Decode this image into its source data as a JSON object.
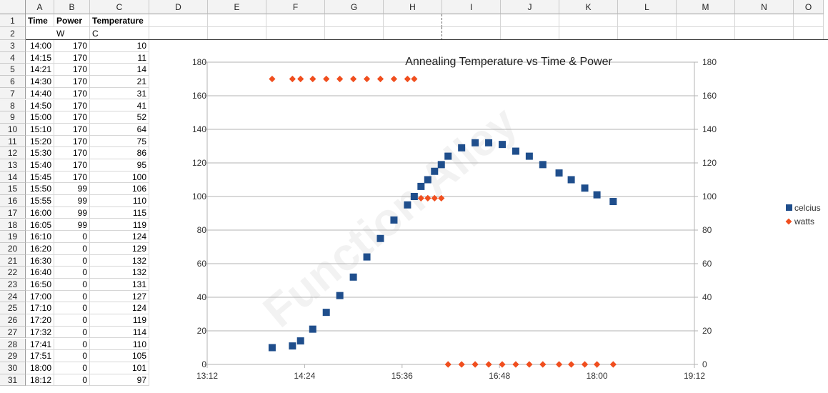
{
  "sheet": {
    "columns": [
      "A",
      "B",
      "C",
      "D",
      "E",
      "F",
      "G",
      "H",
      "I",
      "J",
      "K",
      "L",
      "M",
      "N",
      "O"
    ],
    "header_row": {
      "time": "Time",
      "power": "Power",
      "temperature": "Temperature"
    },
    "unit_row": {
      "power": "W",
      "temperature": "C"
    },
    "rows": [
      {
        "time": "14:00",
        "power": "170",
        "temp": "10"
      },
      {
        "time": "14:15",
        "power": "170",
        "temp": "11"
      },
      {
        "time": "14:21",
        "power": "170",
        "temp": "14"
      },
      {
        "time": "14:30",
        "power": "170",
        "temp": "21"
      },
      {
        "time": "14:40",
        "power": "170",
        "temp": "31"
      },
      {
        "time": "14:50",
        "power": "170",
        "temp": "41"
      },
      {
        "time": "15:00",
        "power": "170",
        "temp": "52"
      },
      {
        "time": "15:10",
        "power": "170",
        "temp": "64"
      },
      {
        "time": "15:20",
        "power": "170",
        "temp": "75"
      },
      {
        "time": "15:30",
        "power": "170",
        "temp": "86"
      },
      {
        "time": "15:40",
        "power": "170",
        "temp": "95"
      },
      {
        "time": "15:45",
        "power": "170",
        "temp": "100"
      },
      {
        "time": "15:50",
        "power": "99",
        "temp": "106"
      },
      {
        "time": "15:55",
        "power": "99",
        "temp": "110"
      },
      {
        "time": "16:00",
        "power": "99",
        "temp": "115"
      },
      {
        "time": "16:05",
        "power": "99",
        "temp": "119"
      },
      {
        "time": "16:10",
        "power": "0",
        "temp": "124"
      },
      {
        "time": "16:20",
        "power": "0",
        "temp": "129"
      },
      {
        "time": "16:30",
        "power": "0",
        "temp": "132"
      },
      {
        "time": "16:40",
        "power": "0",
        "temp": "132"
      },
      {
        "time": "16:50",
        "power": "0",
        "temp": "131"
      },
      {
        "time": "17:00",
        "power": "0",
        "temp": "127"
      },
      {
        "time": "17:10",
        "power": "0",
        "temp": "124"
      },
      {
        "time": "17:20",
        "power": "0",
        "temp": "119"
      },
      {
        "time": "17:32",
        "power": "0",
        "temp": "114"
      },
      {
        "time": "17:41",
        "power": "0",
        "temp": "110"
      },
      {
        "time": "17:51",
        "power": "0",
        "temp": "105"
      },
      {
        "time": "18:00",
        "power": "0",
        "temp": "101"
      },
      {
        "time": "18:12",
        "power": "0",
        "temp": "97"
      }
    ]
  },
  "watermark": "Function Alley",
  "chart_data": {
    "type": "scatter",
    "title": "Annealing Temperature vs Time & Power",
    "xlabel": "",
    "ylabel": "",
    "x_ticks": [
      "13:12",
      "14:24",
      "15:36",
      "16:48",
      "18:00",
      "19:12"
    ],
    "x_range": [
      "13:12",
      "19:12"
    ],
    "y_ticks": [
      "0",
      "20",
      "40",
      "60",
      "80",
      "100",
      "120",
      "140",
      "160",
      "180"
    ],
    "ylim": [
      0,
      180
    ],
    "y2lim": [
      0,
      180
    ],
    "grid": true,
    "legend_position": "right",
    "series": [
      {
        "name": "celcius",
        "color": "#1f4e8c",
        "marker": "square",
        "axis": "primary",
        "x": [
          "14:00",
          "14:15",
          "14:21",
          "14:30",
          "14:40",
          "14:50",
          "15:00",
          "15:10",
          "15:20",
          "15:30",
          "15:40",
          "15:45",
          "15:50",
          "15:55",
          "16:00",
          "16:05",
          "16:10",
          "16:20",
          "16:30",
          "16:40",
          "16:50",
          "17:00",
          "17:10",
          "17:20",
          "17:32",
          "17:41",
          "17:51",
          "18:00",
          "18:12"
        ],
        "y": [
          10,
          11,
          14,
          21,
          31,
          41,
          52,
          64,
          75,
          86,
          95,
          100,
          106,
          110,
          115,
          119,
          124,
          129,
          132,
          132,
          131,
          127,
          124,
          119,
          114,
          110,
          105,
          101,
          97
        ]
      },
      {
        "name": "watts",
        "color": "#f04e1e",
        "marker": "diamond",
        "axis": "secondary",
        "x": [
          "14:00",
          "14:15",
          "14:21",
          "14:30",
          "14:40",
          "14:50",
          "15:00",
          "15:10",
          "15:20",
          "15:30",
          "15:40",
          "15:45",
          "15:50",
          "15:55",
          "16:00",
          "16:05",
          "16:10",
          "16:20",
          "16:30",
          "16:40",
          "16:50",
          "17:00",
          "17:10",
          "17:20",
          "17:32",
          "17:41",
          "17:51",
          "18:00",
          "18:12"
        ],
        "y": [
          170,
          170,
          170,
          170,
          170,
          170,
          170,
          170,
          170,
          170,
          170,
          170,
          99,
          99,
          99,
          99,
          0,
          0,
          0,
          0,
          0,
          0,
          0,
          0,
          0,
          0,
          0,
          0,
          0
        ]
      }
    ]
  }
}
